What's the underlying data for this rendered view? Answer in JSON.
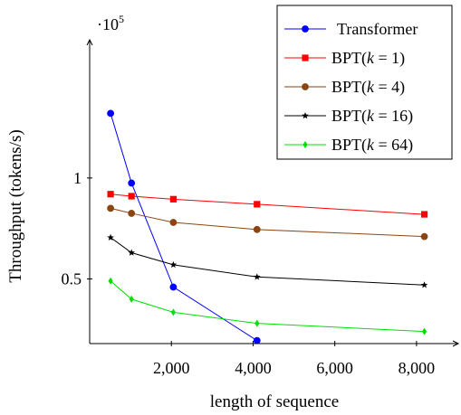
{
  "chart_data": {
    "type": "line",
    "xlabel": "length of sequence",
    "ylabel": "Throughput (tokens/s)",
    "y_scale_note": "·10",
    "y_scale_exponent": "5",
    "xlim": [
      0,
      9000
    ],
    "ylim": [
      0.18,
      1.68
    ],
    "x_ticks": [
      {
        "value": 2000,
        "label": "2,000"
      },
      {
        "value": 4000,
        "label": "4,000"
      },
      {
        "value": 6000,
        "label": "6,000"
      },
      {
        "value": 8000,
        "label": "8,000"
      }
    ],
    "y_ticks": [
      {
        "value": 0.5,
        "label": "0.5"
      },
      {
        "value": 1.0,
        "label": "1"
      }
    ],
    "legend_position": "top-right",
    "series": [
      {
        "name": "Transformer",
        "label_main": "Transformer",
        "label_k": "",
        "color": "#0000ff",
        "marker": "circle",
        "x": [
          512,
          1024,
          2048,
          4096
        ],
        "y": [
          1.32,
          0.975,
          0.46,
          0.195
        ]
      },
      {
        "name": "BPT(k = 1)",
        "label_main": "BPT(",
        "label_k": "1",
        "color": "#ff0000",
        "marker": "square",
        "x": [
          512,
          1024,
          2048,
          4096,
          8192
        ],
        "y": [
          0.92,
          0.91,
          0.895,
          0.87,
          0.82
        ]
      },
      {
        "name": "BPT(k = 4)",
        "label_main": "BPT(",
        "label_k": "4",
        "color": "#8b4513",
        "marker": "circle",
        "x": [
          512,
          1024,
          2048,
          4096,
          8192
        ],
        "y": [
          0.85,
          0.825,
          0.78,
          0.745,
          0.71
        ]
      },
      {
        "name": "BPT(k = 16)",
        "label_main": "BPT(",
        "label_k": "16",
        "color": "#000000",
        "marker": "star",
        "x": [
          512,
          1024,
          2048,
          4096,
          8192
        ],
        "y": [
          0.705,
          0.63,
          0.57,
          0.51,
          0.47
        ]
      },
      {
        "name": "BPT(k = 64)",
        "label_main": "BPT(",
        "label_k": "64",
        "color": "#00e000",
        "marker": "diamond",
        "x": [
          512,
          1024,
          2048,
          4096,
          8192
        ],
        "y": [
          0.49,
          0.4,
          0.335,
          0.28,
          0.24
        ]
      }
    ]
  }
}
